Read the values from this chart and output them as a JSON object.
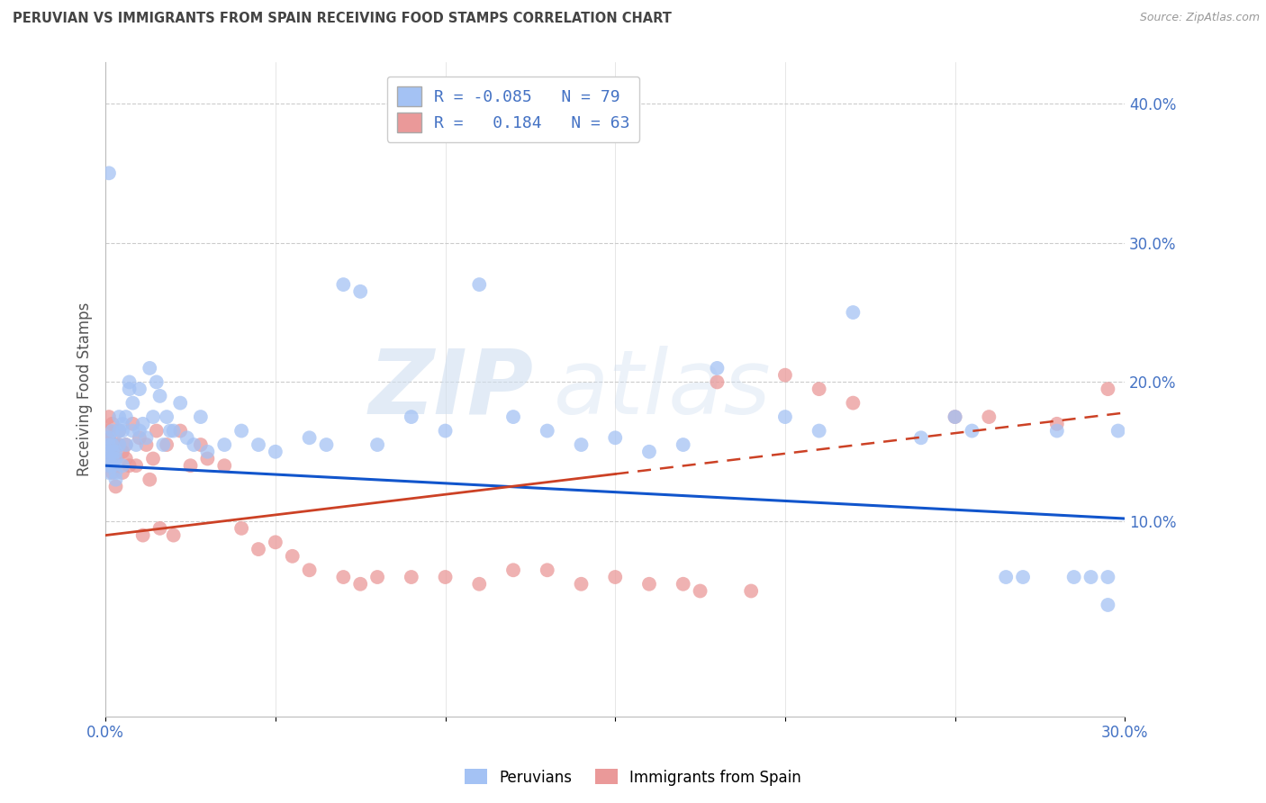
{
  "title": "PERUVIAN VS IMMIGRANTS FROM SPAIN RECEIVING FOOD STAMPS CORRELATION CHART",
  "source": "Source: ZipAtlas.com",
  "ylabel": "Receiving Food Stamps",
  "watermark": "ZIPatlas",
  "xlim": [
    0.0,
    0.3
  ],
  "ylim": [
    -0.04,
    0.43
  ],
  "series1_color": "#a4c2f4",
  "series2_color": "#ea9999",
  "series1_label": "Peruvians",
  "series2_label": "Immigrants from Spain",
  "R1": -0.085,
  "N1": 79,
  "R2": 0.184,
  "N2": 63,
  "line1_color": "#1155cc",
  "line2_color": "#cc4125",
  "grid_color": "#cccccc",
  "background_color": "#ffffff",
  "title_color": "#444444",
  "axis_label_color": "#4472c4",
  "legend_box_color1": "#a4c2f4",
  "legend_box_color2": "#ea9999",
  "peruvians_x": [
    0.001,
    0.001,
    0.001,
    0.001,
    0.001,
    0.001,
    0.002,
    0.002,
    0.002,
    0.002,
    0.002,
    0.003,
    0.003,
    0.003,
    0.003,
    0.004,
    0.004,
    0.004,
    0.005,
    0.005,
    0.005,
    0.006,
    0.006,
    0.007,
    0.007,
    0.008,
    0.008,
    0.009,
    0.01,
    0.01,
    0.011,
    0.012,
    0.013,
    0.014,
    0.015,
    0.016,
    0.017,
    0.018,
    0.019,
    0.02,
    0.022,
    0.024,
    0.026,
    0.028,
    0.03,
    0.035,
    0.04,
    0.045,
    0.05,
    0.06,
    0.065,
    0.07,
    0.075,
    0.08,
    0.09,
    0.1,
    0.11,
    0.12,
    0.13,
    0.14,
    0.15,
    0.16,
    0.17,
    0.18,
    0.2,
    0.21,
    0.22,
    0.24,
    0.25,
    0.255,
    0.265,
    0.27,
    0.28,
    0.285,
    0.29,
    0.295,
    0.298,
    0.295,
    0.001
  ],
  "peruvians_y": [
    0.145,
    0.15,
    0.135,
    0.155,
    0.16,
    0.14,
    0.155,
    0.145,
    0.165,
    0.15,
    0.14,
    0.13,
    0.15,
    0.145,
    0.135,
    0.165,
    0.155,
    0.175,
    0.14,
    0.165,
    0.17,
    0.155,
    0.175,
    0.2,
    0.195,
    0.165,
    0.185,
    0.155,
    0.195,
    0.165,
    0.17,
    0.16,
    0.21,
    0.175,
    0.2,
    0.19,
    0.155,
    0.175,
    0.165,
    0.165,
    0.185,
    0.16,
    0.155,
    0.175,
    0.15,
    0.155,
    0.165,
    0.155,
    0.15,
    0.16,
    0.155,
    0.27,
    0.265,
    0.155,
    0.175,
    0.165,
    0.27,
    0.175,
    0.165,
    0.155,
    0.16,
    0.15,
    0.155,
    0.21,
    0.175,
    0.165,
    0.25,
    0.16,
    0.175,
    0.165,
    0.06,
    0.06,
    0.165,
    0.06,
    0.06,
    0.06,
    0.165,
    0.04,
    0.35
  ],
  "spain_x": [
    0.001,
    0.001,
    0.001,
    0.001,
    0.001,
    0.001,
    0.002,
    0.002,
    0.002,
    0.002,
    0.003,
    0.003,
    0.003,
    0.004,
    0.004,
    0.005,
    0.005,
    0.006,
    0.006,
    0.007,
    0.008,
    0.009,
    0.01,
    0.011,
    0.012,
    0.013,
    0.014,
    0.015,
    0.016,
    0.018,
    0.02,
    0.022,
    0.025,
    0.028,
    0.03,
    0.035,
    0.04,
    0.045,
    0.05,
    0.055,
    0.06,
    0.07,
    0.075,
    0.08,
    0.09,
    0.1,
    0.11,
    0.12,
    0.13,
    0.14,
    0.15,
    0.16,
    0.17,
    0.175,
    0.18,
    0.19,
    0.2,
    0.21,
    0.22,
    0.25,
    0.26,
    0.28,
    0.295
  ],
  "spain_y": [
    0.165,
    0.155,
    0.145,
    0.175,
    0.16,
    0.14,
    0.155,
    0.17,
    0.145,
    0.135,
    0.155,
    0.145,
    0.125,
    0.165,
    0.155,
    0.15,
    0.135,
    0.145,
    0.155,
    0.14,
    0.17,
    0.14,
    0.16,
    0.09,
    0.155,
    0.13,
    0.145,
    0.165,
    0.095,
    0.155,
    0.09,
    0.165,
    0.14,
    0.155,
    0.145,
    0.14,
    0.095,
    0.08,
    0.085,
    0.075,
    0.065,
    0.06,
    0.055,
    0.06,
    0.06,
    0.06,
    0.055,
    0.065,
    0.065,
    0.055,
    0.06,
    0.055,
    0.055,
    0.05,
    0.2,
    0.05,
    0.205,
    0.195,
    0.185,
    0.175,
    0.175,
    0.17,
    0.195
  ],
  "line1_y_start": 0.14,
  "line1_y_end": 0.102,
  "line2_y_start": 0.09,
  "line2_y_end": 0.178,
  "line2_solid_end_x": 0.15,
  "line2_dashed_start_x": 0.15
}
